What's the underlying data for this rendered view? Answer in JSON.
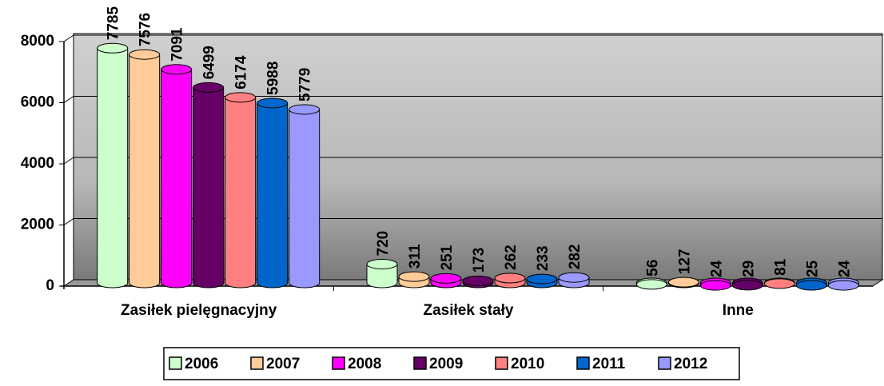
{
  "chart_data": {
    "type": "bar",
    "categories": [
      "Zasiłek pielęgnacyjny",
      "Zasiłek stały",
      "Inne"
    ],
    "series": [
      {
        "name": "2006",
        "color": "#ccffcc",
        "values": [
          7785,
          720,
          56
        ]
      },
      {
        "name": "2007",
        "color": "#ffcc99",
        "values": [
          7576,
          311,
          127
        ]
      },
      {
        "name": "2008",
        "color": "#ff00ff",
        "values": [
          7091,
          251,
          24
        ]
      },
      {
        "name": "2009",
        "color": "#660066",
        "values": [
          6499,
          173,
          29
        ]
      },
      {
        "name": "2010",
        "color": "#ff8080",
        "values": [
          6174,
          262,
          81
        ]
      },
      {
        "name": "2011",
        "color": "#0066cc",
        "values": [
          5988,
          233,
          25
        ]
      },
      {
        "name": "2012",
        "color": "#9999ff",
        "values": [
          5779,
          282,
          24
        ]
      }
    ],
    "ylim": [
      0,
      8000
    ],
    "yticks": [
      0,
      2000,
      4000,
      6000,
      8000
    ],
    "grid": true,
    "legend": "bottom"
  }
}
